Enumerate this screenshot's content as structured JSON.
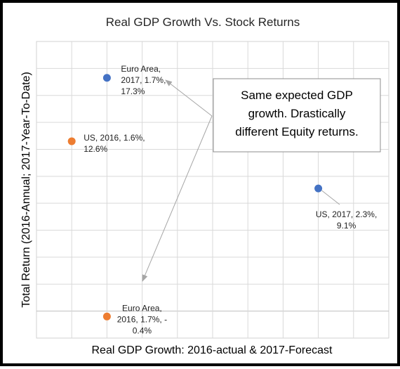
{
  "chart_data": {
    "type": "scatter",
    "title": "Real GDP Growth Vs. Stock Returns",
    "xlabel": "Real GDP Growth: 2016-actual  & 2017-Forecast",
    "ylabel": "Total Return (2016-Annual; 2017-Year-To-Date)",
    "xlim": [
      1.5,
      2.5
    ],
    "ylim": [
      -2,
      20
    ],
    "grid": true,
    "legend": "none",
    "series": [
      {
        "color": "#4472C4",
        "points": [
          {
            "x": 1.7,
            "y": 17.3,
            "label": [
              "Euro Area,",
              "2017, 1.7%,",
              "17.3%"
            ]
          },
          {
            "x": 2.3,
            "y": 9.1,
            "label": [
              "US, 2017, 2.3%,",
              "9.1%"
            ]
          }
        ]
      },
      {
        "color": "#ED7D31",
        "points": [
          {
            "x": 1.6,
            "y": 12.6,
            "label": [
              "US, 2016, 1.6%,",
              "12.6%"
            ]
          },
          {
            "x": 1.7,
            "y": -0.4,
            "label": [
              "Euro Area,",
              "2016, 1.7%, -",
              "0.4%"
            ]
          }
        ]
      }
    ],
    "annotation": {
      "lines": [
        "Same expected GDP",
        "growth. Drastically",
        "different Equity returns."
      ]
    }
  }
}
